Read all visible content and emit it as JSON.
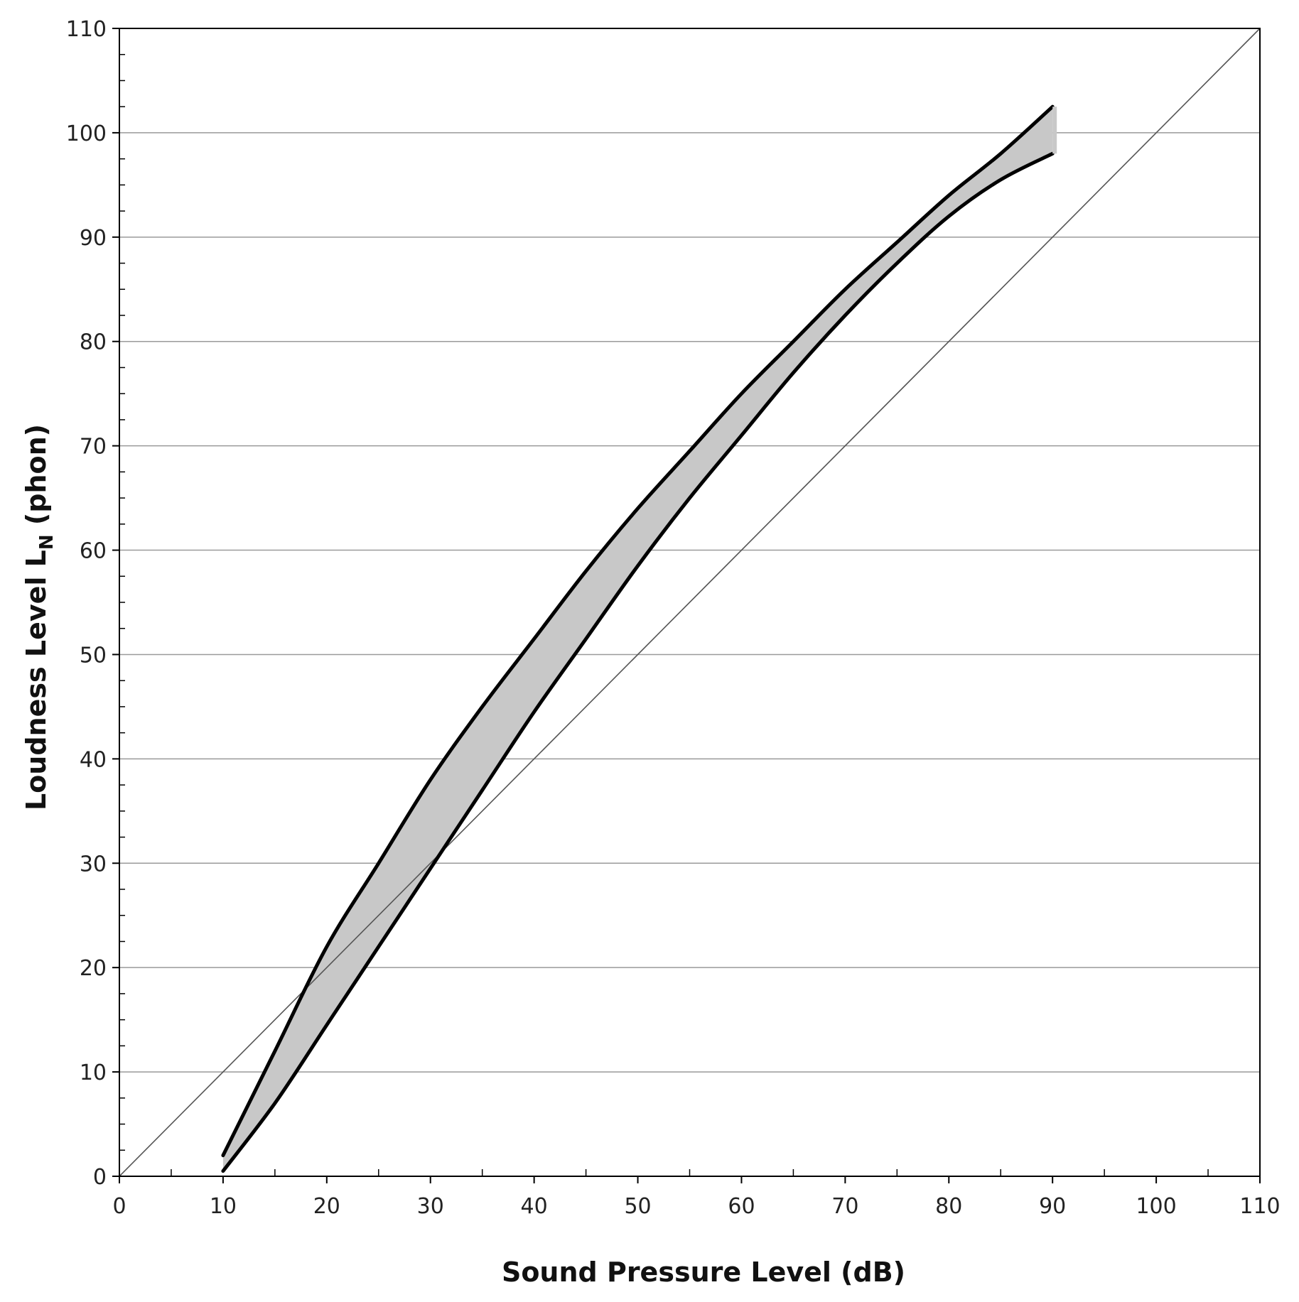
{
  "chart_data": {
    "type": "area",
    "xlabel": "Sound Pressure Level  (dB)",
    "ylabel": {
      "main": "Loudness Level  L",
      "sub": "N",
      "unit": " (phon)"
    },
    "xlim": [
      0,
      110
    ],
    "ylim": [
      0,
      110
    ],
    "xticks": [
      "0",
      "10",
      "20",
      "30",
      "40",
      "50",
      "60",
      "70",
      "80",
      "90",
      "100",
      "110"
    ],
    "yticks": [
      "0",
      "10",
      "20",
      "30",
      "40",
      "50",
      "60",
      "70",
      "80",
      "90",
      "100",
      "110"
    ],
    "grid": "horizontal",
    "series": [
      {
        "role": "upper-bound",
        "x": [
          10,
          15,
          20,
          25,
          30,
          35,
          40,
          45,
          50,
          55,
          60,
          65,
          70,
          75,
          80,
          85,
          90
        ],
        "y": [
          2,
          12,
          22,
          30,
          38,
          45,
          51.5,
          58,
          64,
          69.5,
          75,
          80,
          85,
          89.5,
          94,
          98,
          102.5
        ]
      },
      {
        "role": "lower-bound",
        "x": [
          10,
          15,
          20,
          25,
          30,
          35,
          40,
          45,
          50,
          55,
          60,
          65,
          70,
          75,
          80,
          85,
          90
        ],
        "y": [
          0.5,
          7,
          14.5,
          22,
          29.5,
          37,
          44.5,
          51.5,
          58.5,
          65,
          71,
          77,
          82.5,
          87.5,
          92,
          95.5,
          98
        ]
      },
      {
        "role": "reference-line",
        "x": [
          0,
          110
        ],
        "y": [
          0,
          110
        ]
      }
    ],
    "colors": {
      "band": "#c8c8c8",
      "curve": "#000000",
      "grid": "#9a9a9a",
      "reference": "#555555"
    }
  }
}
